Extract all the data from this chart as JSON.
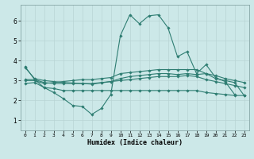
{
  "xlabel": "Humidex (Indice chaleur)",
  "ylabel": "",
  "xlim": [
    -0.5,
    23.5
  ],
  "ylim": [
    0.5,
    6.8
  ],
  "yticks": [
    1,
    2,
    3,
    4,
    5,
    6
  ],
  "xticks": [
    0,
    1,
    2,
    3,
    4,
    5,
    6,
    7,
    8,
    9,
    10,
    11,
    12,
    13,
    14,
    15,
    16,
    17,
    18,
    19,
    20,
    21,
    22,
    23
  ],
  "bg_color": "#cce8e8",
  "grid_color": "#b8d4d4",
  "line_color": "#2e7d72",
  "lines": [
    {
      "x": [
        0,
        1,
        2,
        3,
        4,
        5,
        6,
        7,
        8,
        9,
        10,
        11,
        12,
        13,
        14,
        15,
        16,
        17,
        18,
        19,
        20,
        21,
        22
      ],
      "y": [
        3.7,
        3.05,
        2.65,
        2.4,
        2.1,
        1.75,
        1.7,
        1.3,
        1.6,
        2.3,
        5.25,
        6.3,
        5.85,
        6.25,
        6.3,
        5.65,
        4.2,
        4.45,
        3.35,
        3.8,
        3.15,
        2.95,
        2.3
      ]
    },
    {
      "x": [
        0,
        1,
        2,
        3,
        4,
        5,
        6,
        7,
        8,
        9,
        10,
        11,
        12,
        13,
        14,
        15,
        16,
        17,
        18,
        19,
        20,
        21,
        22,
        23
      ],
      "y": [
        3.0,
        3.0,
        2.85,
        2.9,
        2.95,
        3.0,
        3.05,
        3.05,
        3.1,
        3.15,
        3.35,
        3.4,
        3.45,
        3.5,
        3.55,
        3.55,
        3.55,
        3.55,
        3.55,
        3.35,
        3.25,
        3.1,
        3.0,
        2.9
      ]
    },
    {
      "x": [
        0,
        1,
        2,
        3,
        4,
        5,
        6,
        7,
        8,
        9,
        10,
        11,
        12,
        13,
        14,
        15,
        16,
        17,
        18,
        19,
        20,
        21,
        22,
        23
      ],
      "y": [
        3.05,
        3.05,
        2.9,
        2.85,
        2.85,
        2.85,
        2.85,
        2.85,
        2.9,
        2.95,
        3.0,
        3.05,
        3.1,
        3.15,
        3.2,
        3.2,
        3.2,
        3.25,
        3.2,
        3.05,
        2.95,
        2.85,
        2.75,
        2.65
      ]
    },
    {
      "x": [
        0,
        1,
        2,
        3,
        4,
        5,
        6,
        7,
        8,
        9,
        10,
        11,
        12,
        13,
        14,
        15,
        16,
        17,
        18,
        19,
        20,
        21,
        22,
        23
      ],
      "y": [
        2.85,
        2.9,
        2.65,
        2.6,
        2.5,
        2.5,
        2.5,
        2.5,
        2.5,
        2.5,
        2.5,
        2.5,
        2.5,
        2.5,
        2.5,
        2.5,
        2.5,
        2.5,
        2.5,
        2.4,
        2.35,
        2.3,
        2.25,
        2.25
      ]
    },
    {
      "x": [
        0,
        1,
        2,
        3,
        4,
        5,
        6,
        7,
        8,
        9,
        10,
        11,
        12,
        13,
        14,
        15,
        16,
        17,
        18,
        19,
        20,
        21,
        22,
        23
      ],
      "y": [
        3.65,
        3.1,
        3.0,
        2.95,
        2.9,
        2.88,
        2.85,
        2.82,
        2.88,
        2.95,
        3.1,
        3.2,
        3.25,
        3.3,
        3.35,
        3.35,
        3.3,
        3.35,
        3.3,
        3.35,
        3.1,
        3.0,
        2.9,
        2.25
      ]
    }
  ]
}
